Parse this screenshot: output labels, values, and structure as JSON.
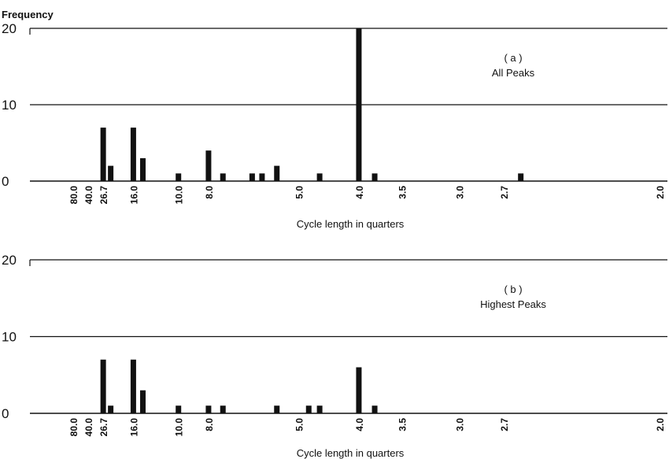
{
  "chart_data": [
    {
      "type": "bar",
      "panel_label": "( a )",
      "title": "All Peaks",
      "ylabel": "Frequency",
      "xlabel": "Cycle length in quarters",
      "yticks": [
        "0",
        "10",
        "20"
      ],
      "ylim": [
        0,
        20
      ],
      "grid": "horizontal",
      "xticks": [
        "80.0",
        "40.0",
        "26.7",
        "16.0",
        "10.0",
        "8.0",
        "5.0",
        "4.0",
        "3.5",
        "3.0",
        "2.7",
        "2.0"
      ],
      "x": [
        26.7,
        22.9,
        16.0,
        14.2,
        10.0,
        8.0,
        7.3,
        6.2,
        5.9,
        5.5,
        4.6,
        4.0,
        3.8,
        2.6
      ],
      "values": [
        7,
        2,
        7,
        3,
        1,
        4,
        1,
        1,
        1,
        2,
        1,
        20,
        1,
        1
      ]
    },
    {
      "type": "bar",
      "panel_label": "( b )",
      "title": "Highest Peaks",
      "ylabel": "",
      "xlabel": "Cycle length in quarters",
      "yticks": [
        "0",
        "10",
        "20"
      ],
      "ylim": [
        0,
        20
      ],
      "grid": "horizontal",
      "xticks": [
        "80.0",
        "40.0",
        "26.7",
        "16.0",
        "10.0",
        "8.0",
        "5.0",
        "4.0",
        "3.5",
        "3.0",
        "2.7",
        "2.0"
      ],
      "x": [
        26.7,
        22.9,
        16.0,
        14.2,
        10.0,
        8.0,
        7.3,
        5.5,
        4.8,
        4.6,
        4.0,
        3.8
      ],
      "values": [
        7,
        1,
        7,
        3,
        1,
        1,
        1,
        1,
        1,
        1,
        6,
        1
      ]
    }
  ]
}
